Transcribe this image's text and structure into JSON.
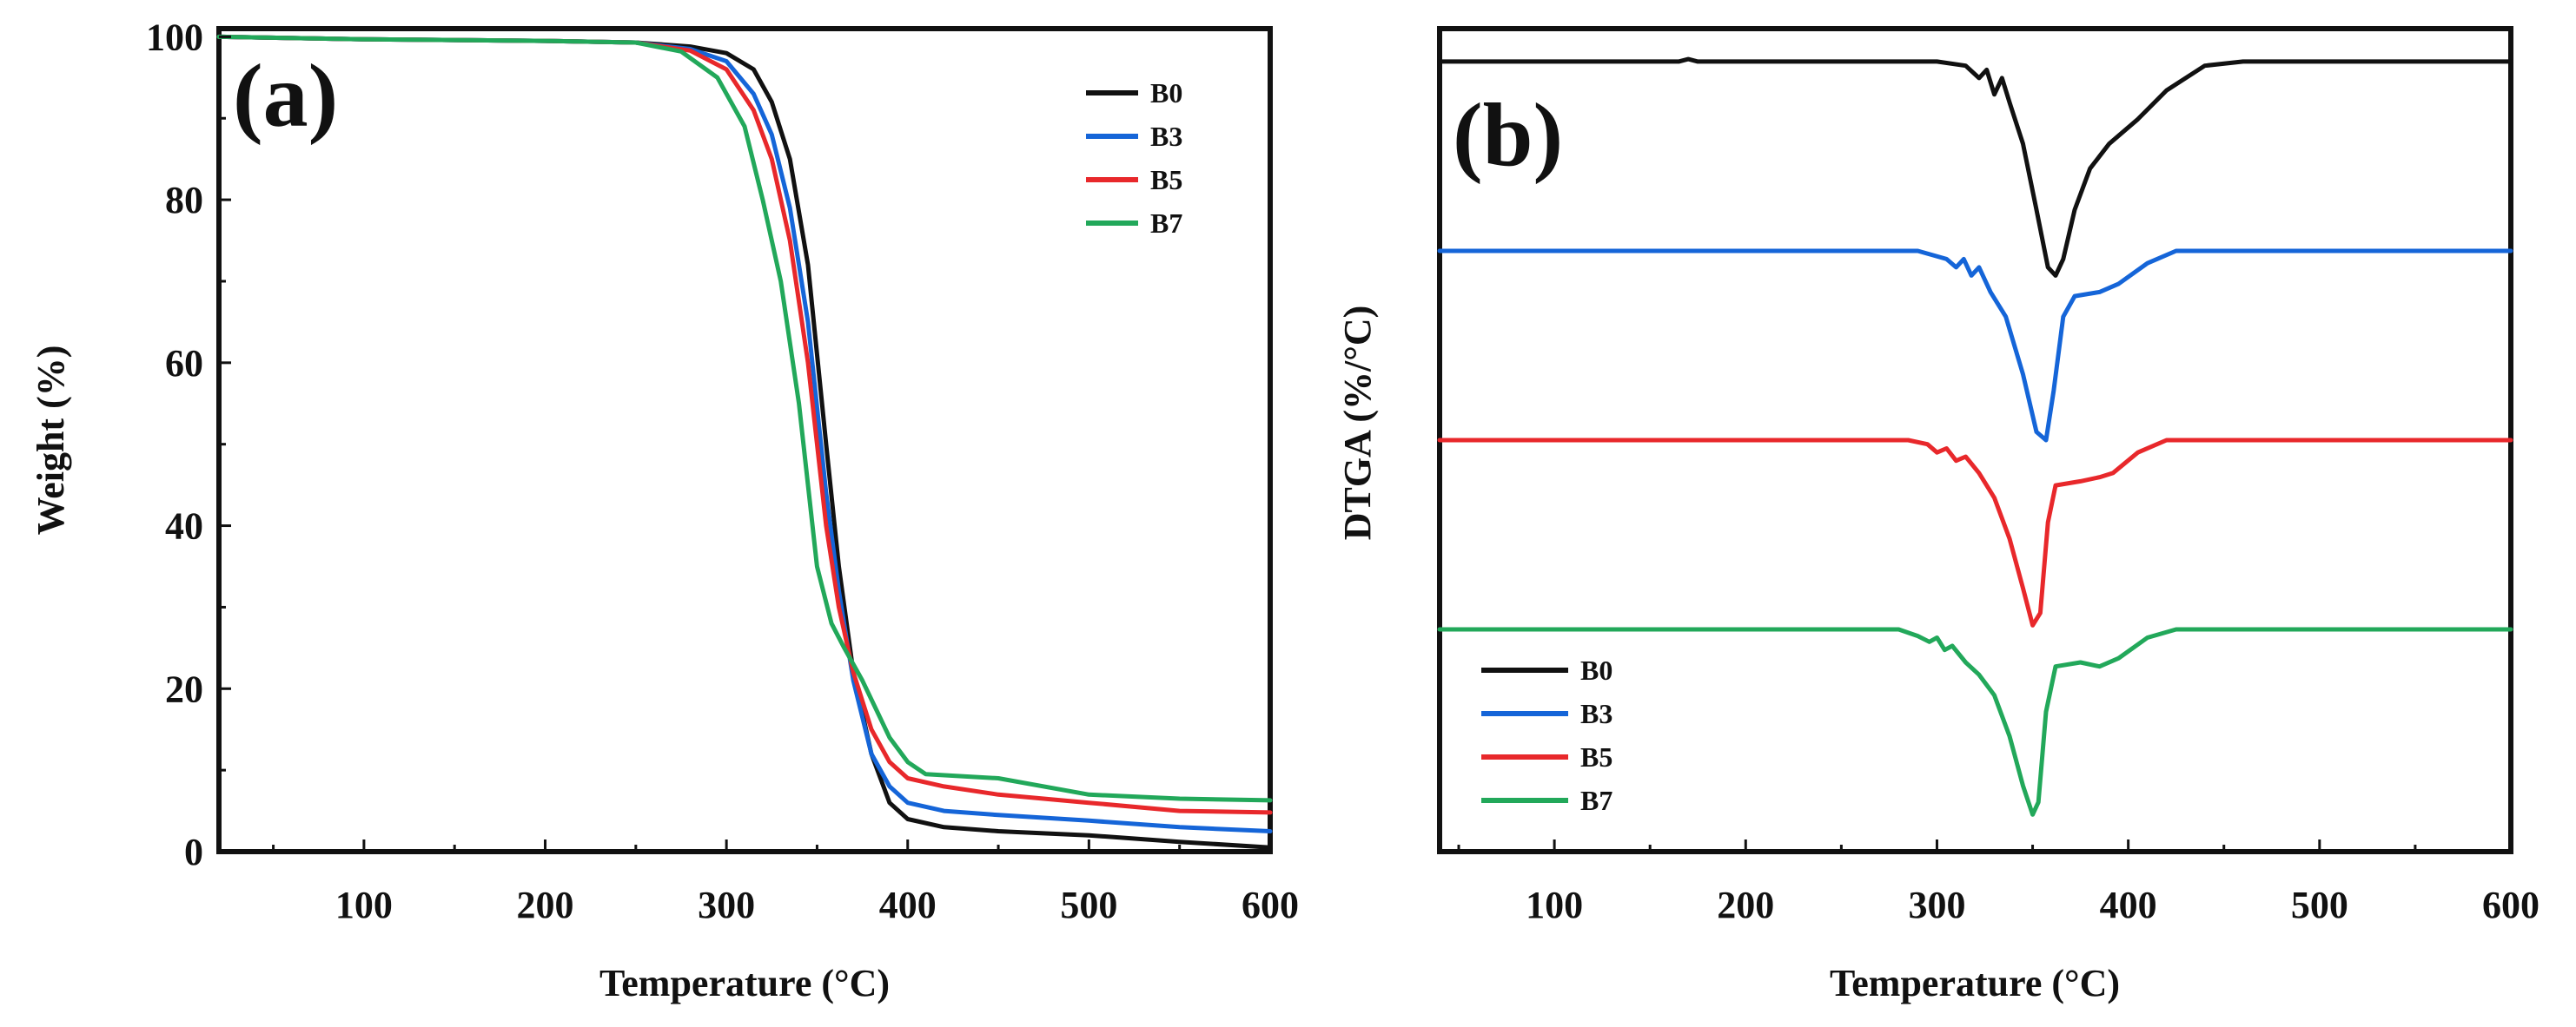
{
  "chart_data": [
    {
      "type": "line",
      "panel_label": "(a)",
      "xlabel": "Temperature (°C)",
      "ylabel": "Weight (%)",
      "xlim": [
        20,
        600
      ],
      "ylim": [
        0,
        101
      ],
      "xticks": [
        100,
        200,
        300,
        400,
        500,
        600
      ],
      "yticks": [
        0,
        20,
        40,
        60,
        80,
        100
      ],
      "x_tick_labels": [
        "100",
        "200",
        "300",
        "400",
        "500",
        "600"
      ],
      "y_tick_labels": [
        "0",
        "20",
        "40",
        "60",
        "80",
        "100"
      ],
      "legend_position": "top-right",
      "series": [
        {
          "name": "B0",
          "color": "#111111",
          "points": [
            [
              20,
              100
            ],
            [
              100,
              99.7
            ],
            [
              200,
              99.5
            ],
            [
              250,
              99.3
            ],
            [
              280,
              98.8
            ],
            [
              300,
              98
            ],
            [
              315,
              96
            ],
            [
              325,
              92
            ],
            [
              335,
              85
            ],
            [
              345,
              72
            ],
            [
              355,
              50
            ],
            [
              362,
              35
            ],
            [
              370,
              22
            ],
            [
              380,
              12
            ],
            [
              390,
              6
            ],
            [
              400,
              4
            ],
            [
              420,
              3
            ],
            [
              450,
              2.5
            ],
            [
              500,
              2
            ],
            [
              550,
              1.2
            ],
            [
              600,
              0.5
            ]
          ]
        },
        {
          "name": "B3",
          "color": "#1565d8",
          "points": [
            [
              20,
              100
            ],
            [
              100,
              99.7
            ],
            [
              200,
              99.5
            ],
            [
              250,
              99.3
            ],
            [
              280,
              98.5
            ],
            [
              300,
              97
            ],
            [
              315,
              93
            ],
            [
              325,
              88
            ],
            [
              335,
              79
            ],
            [
              345,
              65
            ],
            [
              355,
              44
            ],
            [
              362,
              32
            ],
            [
              370,
              21
            ],
            [
              380,
              12
            ],
            [
              390,
              8
            ],
            [
              400,
              6
            ],
            [
              420,
              5
            ],
            [
              450,
              4.5
            ],
            [
              500,
              3.8
            ],
            [
              550,
              3
            ],
            [
              600,
              2.5
            ]
          ]
        },
        {
          "name": "B5",
          "color": "#e8282b",
          "points": [
            [
              20,
              100
            ],
            [
              100,
              99.7
            ],
            [
              200,
              99.5
            ],
            [
              250,
              99.3
            ],
            [
              280,
              98.3
            ],
            [
              300,
              96
            ],
            [
              315,
              91
            ],
            [
              325,
              85
            ],
            [
              335,
              75
            ],
            [
              345,
              60
            ],
            [
              355,
              40
            ],
            [
              362,
              30
            ],
            [
              370,
              22
            ],
            [
              380,
              15
            ],
            [
              390,
              11
            ],
            [
              400,
              9
            ],
            [
              420,
              8
            ],
            [
              450,
              7
            ],
            [
              500,
              6
            ],
            [
              550,
              5
            ],
            [
              600,
              4.8
            ]
          ]
        },
        {
          "name": "B7",
          "color": "#22a85a",
          "points": [
            [
              20,
              100
            ],
            [
              100,
              99.7
            ],
            [
              200,
              99.5
            ],
            [
              250,
              99.3
            ],
            [
              275,
              98.2
            ],
            [
              295,
              95
            ],
            [
              310,
              89
            ],
            [
              320,
              80
            ],
            [
              330,
              70
            ],
            [
              340,
              55
            ],
            [
              350,
              35
            ],
            [
              358,
              28
            ],
            [
              365,
              25
            ],
            [
              375,
              21
            ],
            [
              390,
              14
            ],
            [
              400,
              11
            ],
            [
              410,
              9.5
            ],
            [
              450,
              9
            ],
            [
              500,
              7
            ],
            [
              550,
              6.5
            ],
            [
              600,
              6.3
            ]
          ]
        }
      ]
    },
    {
      "type": "line",
      "panel_label": "(b)",
      "xlabel": "Temperature (°C)",
      "ylabel": "DTGA (%/°C)",
      "xlim": [
        40,
        600
      ],
      "ylim": [
        0,
        100
      ],
      "y_tick_labels_shown": false,
      "xticks": [
        100,
        200,
        300,
        400,
        500,
        600
      ],
      "x_tick_labels": [
        "100",
        "200",
        "300",
        "400",
        "500",
        "600"
      ],
      "legend_position": "bottom-left",
      "offset_note": "curves vertically offset; values in arbitrary units",
      "series": [
        {
          "name": "B0",
          "color": "#111111",
          "points": [
            [
              40,
              96
            ],
            [
              165,
              96
            ],
            [
              170,
              96.3
            ],
            [
              175,
              96
            ],
            [
              300,
              96
            ],
            [
              315,
              95.5
            ],
            [
              322,
              94
            ],
            [
              326,
              95
            ],
            [
              330,
              92
            ],
            [
              334,
              94
            ],
            [
              338,
              91
            ],
            [
              345,
              86
            ],
            [
              352,
              78
            ],
            [
              358,
              71
            ],
            [
              362,
              70
            ],
            [
              366,
              72
            ],
            [
              372,
              78
            ],
            [
              380,
              83
            ],
            [
              390,
              86
            ],
            [
              405,
              89
            ],
            [
              420,
              92.5
            ],
            [
              440,
              95.5
            ],
            [
              460,
              96
            ],
            [
              600,
              96
            ]
          ]
        },
        {
          "name": "B3",
          "color": "#1565d8",
          "points": [
            [
              40,
              73
            ],
            [
              290,
              73
            ],
            [
              305,
              72
            ],
            [
              310,
              71
            ],
            [
              314,
              72
            ],
            [
              318,
              70
            ],
            [
              322,
              71
            ],
            [
              328,
              68
            ],
            [
              336,
              65
            ],
            [
              345,
              58
            ],
            [
              352,
              51
            ],
            [
              357,
              50
            ],
            [
              361,
              56
            ],
            [
              366,
              65
            ],
            [
              372,
              67.5
            ],
            [
              385,
              68
            ],
            [
              395,
              69
            ],
            [
              410,
              71.5
            ],
            [
              425,
              73
            ],
            [
              600,
              73
            ]
          ]
        },
        {
          "name": "B5",
          "color": "#e8282b",
          "points": [
            [
              40,
              50
            ],
            [
              285,
              50
            ],
            [
              295,
              49.5
            ],
            [
              300,
              48.5
            ],
            [
              305,
              49
            ],
            [
              310,
              47.5
            ],
            [
              315,
              48
            ],
            [
              322,
              46
            ],
            [
              330,
              43
            ],
            [
              338,
              38
            ],
            [
              345,
              32
            ],
            [
              350,
              27.5
            ],
            [
              354,
              29
            ],
            [
              358,
              40
            ],
            [
              362,
              44.5
            ],
            [
              375,
              45
            ],
            [
              385,
              45.5
            ],
            [
              392,
              46
            ],
            [
              405,
              48.5
            ],
            [
              420,
              50
            ],
            [
              600,
              50
            ]
          ]
        },
        {
          "name": "B7",
          "color": "#22a85a",
          "points": [
            [
              40,
              27
            ],
            [
              280,
              27
            ],
            [
              290,
              26.2
            ],
            [
              296,
              25.5
            ],
            [
              300,
              26
            ],
            [
              304,
              24.5
            ],
            [
              308,
              25
            ],
            [
              315,
              23
            ],
            [
              322,
              21.5
            ],
            [
              330,
              19
            ],
            [
              338,
              14
            ],
            [
              345,
              8
            ],
            [
              350,
              4.5
            ],
            [
              353,
              6
            ],
            [
              357,
              17
            ],
            [
              362,
              22.5
            ],
            [
              375,
              23
            ],
            [
              385,
              22.5
            ],
            [
              395,
              23.5
            ],
            [
              410,
              26
            ],
            [
              425,
              27
            ],
            [
              600,
              27
            ]
          ]
        }
      ]
    }
  ]
}
